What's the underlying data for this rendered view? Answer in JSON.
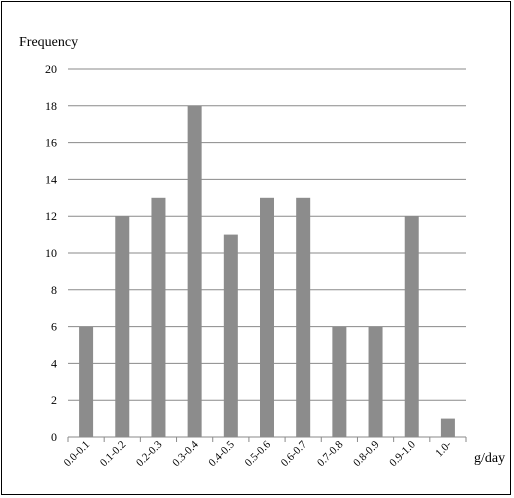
{
  "chart_data": {
    "type": "bar",
    "title": "",
    "ylabel": "Frequency",
    "xlabel": "g/day",
    "ylim": [
      0,
      20
    ],
    "yticks": [
      0,
      2,
      4,
      6,
      8,
      10,
      12,
      14,
      16,
      18,
      20
    ],
    "grid": true,
    "categories": [
      "0.0-0.1",
      "0.1-0.2",
      "0.2-0.3",
      "0.3-0.4",
      "0.4-0.5",
      "0.5-0.6",
      "0.6-0.7",
      "0.7-0.8",
      "0.8-0.9",
      "0.9-1.0",
      "1.0-"
    ],
    "values": [
      6,
      12,
      13,
      18,
      11,
      13,
      13,
      6,
      6,
      12,
      1
    ],
    "colors": {
      "bar": "#8c8c8c",
      "grid": "#8a8a8a",
      "axis": "#8a8a8a",
      "text": "#000000"
    }
  }
}
